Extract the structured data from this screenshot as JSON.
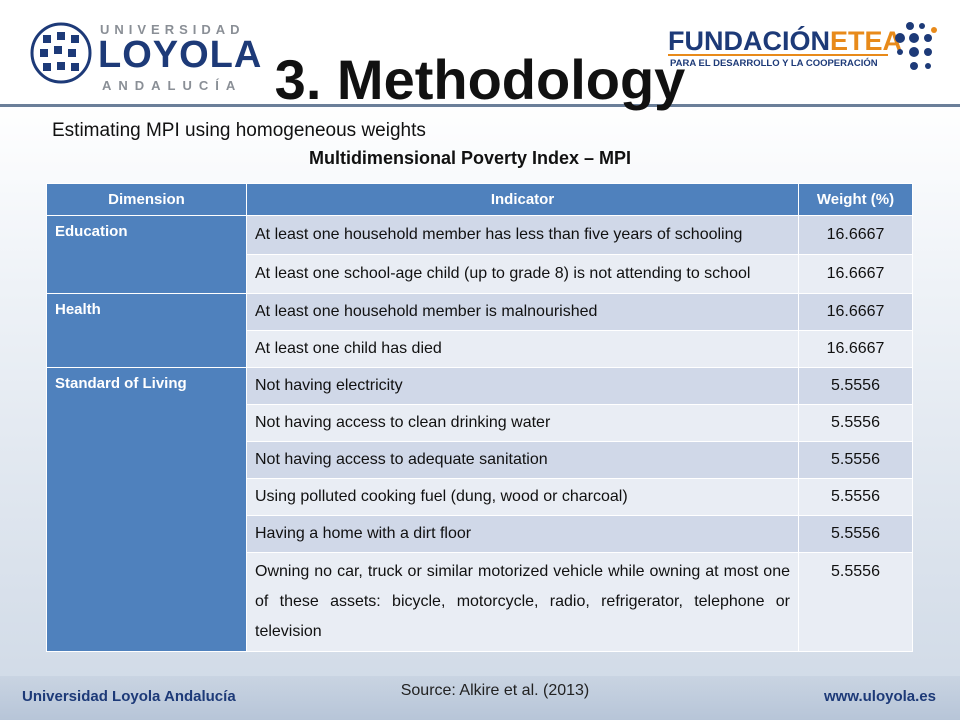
{
  "header": {
    "loyola_logo": {
      "line1": "UNIVERSIDAD",
      "line2": "LOYOLA",
      "line3": "ANDALUCÍA"
    },
    "etea_logo": {
      "name_main": "FUNDACIÓN",
      "name_accent": "ETEA",
      "tagline": "PARA EL DESARROLLO Y LA COOPERACIÓN"
    },
    "title": "3. Methodology"
  },
  "subtitle": "Estimating MPI  using  homogeneous weights",
  "table": {
    "caption": "Multidimensional Poverty Index – MPI",
    "headers": [
      "Dimension",
      "Indicator",
      "Weight (%)"
    ],
    "rows": [
      {
        "dimension": "Education",
        "indicator": "At least one household member has less than five years of schooling",
        "weight": "16.6667"
      },
      {
        "dimension": "",
        "indicator": "At least one school-age child (up to grade 8) is not attending to school",
        "weight": "16.6667"
      },
      {
        "dimension": "Health",
        "indicator": "At least one household member is malnourished",
        "weight": "16.6667"
      },
      {
        "dimension": "",
        "indicator": "At least one child has died",
        "weight": "16.6667"
      },
      {
        "dimension": "Standard of Living",
        "indicator": "Not having electricity",
        "weight": "5.5556"
      },
      {
        "dimension": "",
        "indicator": "Not having access to clean drinking water",
        "weight": "5.5556"
      },
      {
        "dimension": "",
        "indicator": "Not having access to adequate sanitation",
        "weight": "5.5556"
      },
      {
        "dimension": "",
        "indicator": "Using polluted cooking fuel (dung, wood or charcoal)",
        "weight": "5.5556"
      },
      {
        "dimension": "",
        "indicator": "Having a home with a dirt floor",
        "weight": "5.5556"
      },
      {
        "dimension": "",
        "indicator": "Owning no car, truck or similar motorized vehicle while owning at most one of these assets: bicycle, motorcycle, radio, refrigerator, telephone or television",
        "weight": "5.5556"
      }
    ]
  },
  "source": "Source: Alkire et al. (2013)",
  "footer": {
    "left": "Universidad Loyola Andalucía",
    "right": "www.uloyola.es"
  },
  "colors": {
    "header_blue": "#4f81bd",
    "row_dark": "#d0d8e8",
    "row_light": "#e9edf4",
    "brand_navy": "#1d3a78",
    "brand_orange": "#e88a1a"
  }
}
